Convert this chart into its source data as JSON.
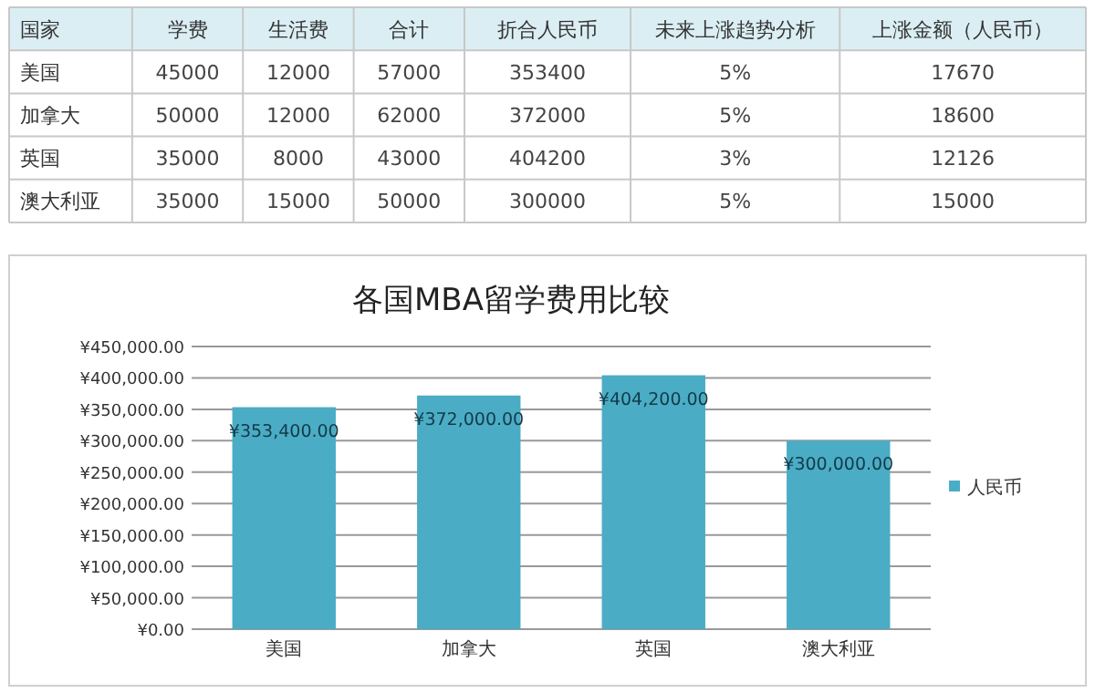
{
  "chart_data": [
    {
      "type": "other",
      "ylabel": "国家",
      "categories": [
        "学费",
        "生活费",
        "合计",
        "折合人民币",
        "未来上涨趋势分析",
        "上涨金额（人民币）"
      ],
      "y_categories": [
        "美国",
        "加拿大",
        "英国",
        "澳大利亚"
      ],
      "cell_labels": [
        [
          "45000",
          "12000",
          "57000",
          "353400",
          "5%",
          "17670"
        ],
        [
          "50000",
          "12000",
          "62000",
          "372000",
          "5%",
          "18600"
        ],
        [
          "35000",
          "8000",
          "43000",
          "404200",
          "3%",
          "12126"
        ],
        [
          "35000",
          "15000",
          "50000",
          "300000",
          "5%",
          "15000"
        ]
      ]
    },
    {
      "type": "bar",
      "title": "各国MBA留学费用比较",
      "categories": [
        "美国",
        "加拿大",
        "英国",
        "澳大利亚"
      ],
      "series": [
        {
          "name": "人民币",
          "color": "#4bacc6",
          "values": [
            353400,
            372000,
            404200,
            300000
          ],
          "value_labels": [
            "¥353,400.00",
            "¥372,000.00",
            "¥404,200.00",
            "¥300,000.00"
          ]
        }
      ],
      "ylim": [
        0,
        450000
      ],
      "yticks": [
        {
          "value": 0,
          "label": "¥0.00"
        },
        {
          "value": 50000,
          "label": "¥50,000.00"
        },
        {
          "value": 100000,
          "label": "¥100,000.00"
        },
        {
          "value": 150000,
          "label": "¥150,000.00"
        },
        {
          "value": 200000,
          "label": "¥200,000.00"
        },
        {
          "value": 250000,
          "label": "¥250,000.00"
        },
        {
          "value": 300000,
          "label": "¥300,000.00"
        },
        {
          "value": 350000,
          "label": "¥350,000.00"
        },
        {
          "value": 400000,
          "label": "¥400,000.00"
        },
        {
          "value": 450000,
          "label": "¥450,000.00"
        }
      ],
      "grid": "y",
      "legend": "right"
    }
  ]
}
